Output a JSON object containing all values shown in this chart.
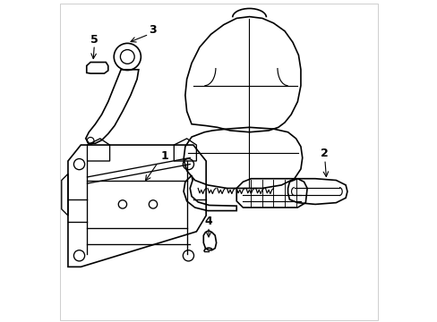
{
  "background_color": "#ffffff",
  "line_color": "#000000",
  "line_width": 1.2,
  "fig_width": 4.89,
  "fig_height": 3.6
}
